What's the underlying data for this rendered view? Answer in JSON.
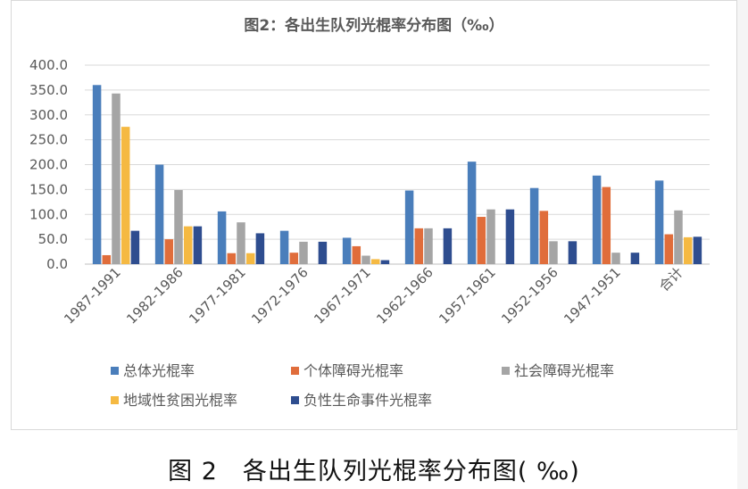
{
  "chart_data": {
    "type": "bar",
    "title": "图2：各出生队列光棍率分布图（‰）",
    "categories": [
      "1987-1991",
      "1982-1986",
      "1977-1981",
      "1972-1976",
      "1967-1971",
      "1962-1966",
      "1957-1961",
      "1952-1956",
      "1947-1951",
      "合计"
    ],
    "ylim": [
      0,
      400
    ],
    "yticks": [
      "0.0",
      "50.0",
      "100.0",
      "150.0",
      "200.0",
      "250.0",
      "300.0",
      "350.0",
      "400.0"
    ],
    "grid": true,
    "legend_position": "bottom",
    "series": [
      {
        "name": "总体光棍率",
        "color": "#4a7ebb",
        "values": [
          360,
          200,
          106,
          67,
          53,
          148,
          206,
          153,
          178,
          168
        ]
      },
      {
        "name": "个体障碍光棍率",
        "color": "#e06d3b",
        "values": [
          18,
          50,
          22,
          23,
          36,
          72,
          95,
          107,
          155,
          60
        ]
      },
      {
        "name": "社会障碍光棍率",
        "color": "#a5a5a5",
        "values": [
          343,
          149,
          84,
          45,
          17,
          72,
          110,
          46,
          23,
          108
        ]
      },
      {
        "name": "地域性贫困光棍率",
        "color": "#f5b942",
        "values": [
          276,
          76,
          22,
          0,
          10,
          0,
          0,
          0,
          0,
          54
        ]
      },
      {
        "name": "负性生命事件光棍率",
        "color": "#2e4d8f",
        "values": [
          67,
          76,
          62,
          45,
          8,
          72,
          110,
          46,
          23,
          55
        ]
      }
    ]
  },
  "caption": "图 2　各出生队列光棍率分布图( ‰)"
}
